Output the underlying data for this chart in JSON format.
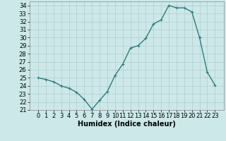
{
  "x": [
    0,
    1,
    2,
    3,
    4,
    5,
    6,
    7,
    8,
    9,
    10,
    11,
    12,
    13,
    14,
    15,
    16,
    17,
    18,
    19,
    20,
    21,
    22,
    23
  ],
  "y": [
    25.0,
    24.8,
    24.5,
    24.0,
    23.7,
    23.2,
    22.3,
    21.1,
    22.2,
    23.3,
    25.3,
    26.7,
    28.7,
    29.0,
    29.9,
    31.7,
    32.2,
    34.0,
    33.7,
    33.7,
    33.2,
    30.0,
    25.7,
    24.1
  ],
  "line_color": "#2d7d7d",
  "marker": "+",
  "marker_size": 3.5,
  "linewidth": 1.0,
  "xlabel": "Humidex (Indice chaleur)",
  "xlabel_fontsize": 7,
  "bg_color": "#cce8e8",
  "grid_color": "#b0cccc",
  "ylim": [
    21,
    34.5
  ],
  "yticks": [
    21,
    22,
    23,
    24,
    25,
    26,
    27,
    28,
    29,
    30,
    31,
    32,
    33,
    34
  ],
  "xticks": [
    0,
    1,
    2,
    3,
    4,
    5,
    6,
    7,
    8,
    9,
    10,
    11,
    12,
    13,
    14,
    15,
    16,
    17,
    18,
    19,
    20,
    21,
    22,
    23
  ],
  "tick_fontsize": 6,
  "ylabel_fontsize": 6
}
